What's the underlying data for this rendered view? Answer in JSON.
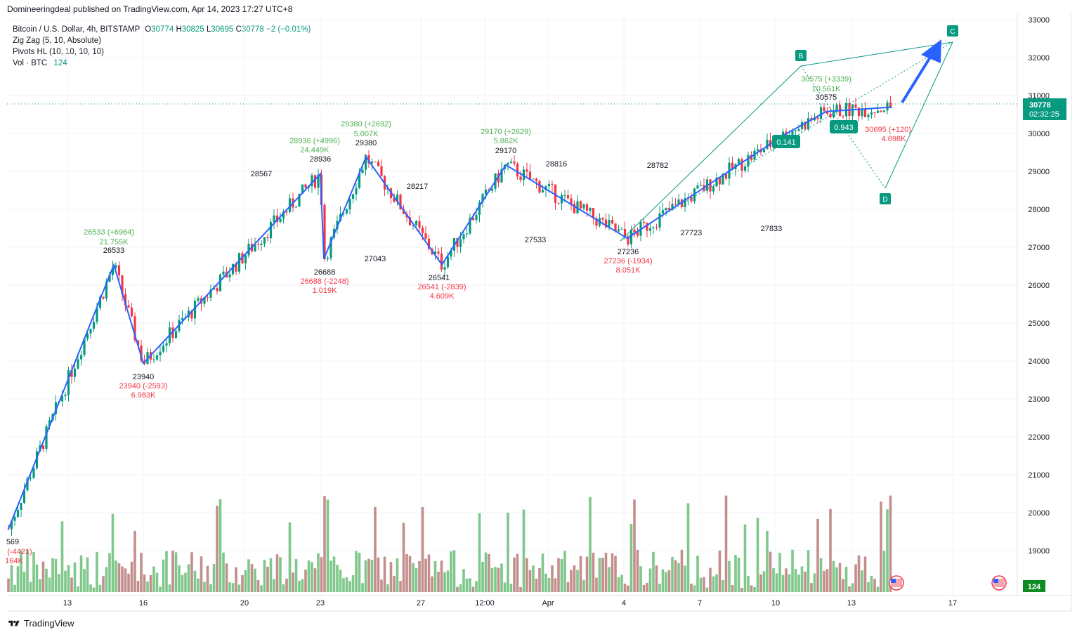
{
  "header": {
    "published": "Domineeringdeal published on TradingView.com, Apr 14, 2023 17:27 UTC+8"
  },
  "legend": {
    "symbol": "Bitcoin / U.S. Dollar, 4h, BITSTAMP",
    "o_label": "O",
    "o": "30774",
    "h_label": "H",
    "h": "30825",
    "l_label": "L",
    "l": "30695",
    "c_label": "C",
    "c": "30778",
    "change": "−2 (−0.01%)",
    "indicator_zigzag": "Zig Zag (5, 10, Absolute)",
    "indicator_pivots": "Pivots HL (10, 10, 10, 10)",
    "vol_label": "Vol · BTC",
    "vol_value": "124"
  },
  "price_axis": {
    "ticks": [
      "33000",
      "32000",
      "31000",
      "30000",
      "29000",
      "28000",
      "27000",
      "26000",
      "25000",
      "24000",
      "23000",
      "22000",
      "21000",
      "20000",
      "19000"
    ],
    "last_price": "30778",
    "countdown": "02:32:25",
    "volume_badge": "124"
  },
  "time_axis": {
    "ticks": [
      "13",
      "16",
      "20",
      "23",
      "27",
      "12:00",
      "Apr",
      "4",
      "7",
      "10",
      "13",
      "17"
    ]
  },
  "pivot_labels": [
    {
      "text": "26533",
      "color": "#131722"
    },
    {
      "text": "26533 (+6964)",
      "color": "#4caf50"
    },
    {
      "text": "21.755K",
      "color": "#4caf50"
    },
    {
      "text": "23940",
      "color": "#131722"
    },
    {
      "text": "23940 (-2593)",
      "color": "#f23645"
    },
    {
      "text": "6.983K",
      "color": "#f23645"
    },
    {
      "text": "28567",
      "color": "#131722"
    },
    {
      "text": "28936",
      "color": "#131722"
    },
    {
      "text": "28936 (+4996)",
      "color": "#4caf50"
    },
    {
      "text": "24.449K",
      "color": "#4caf50"
    },
    {
      "text": "26688",
      "color": "#131722"
    },
    {
      "text": "26688 (-2248)",
      "color": "#f23645"
    },
    {
      "text": "1.019K",
      "color": "#f23645"
    },
    {
      "text": "29380",
      "color": "#131722"
    },
    {
      "text": "29380 (+2692)",
      "color": "#4caf50"
    },
    {
      "text": "5.007K",
      "color": "#4caf50"
    },
    {
      "text": "27043",
      "color": "#131722"
    },
    {
      "text": "28217",
      "color": "#131722"
    },
    {
      "text": "26541",
      "color": "#131722"
    },
    {
      "text": "26541 (-2839)",
      "color": "#f23645"
    },
    {
      "text": "4.609K",
      "color": "#f23645"
    },
    {
      "text": "29170",
      "color": "#131722"
    },
    {
      "text": "29170 (+2629)",
      "color": "#4caf50"
    },
    {
      "text": "5.862K",
      "color": "#4caf50"
    },
    {
      "text": "28816",
      "color": "#131722"
    },
    {
      "text": "27533",
      "color": "#131722"
    },
    {
      "text": "28782",
      "color": "#131722"
    },
    {
      "text": "27236",
      "color": "#131722"
    },
    {
      "text": "27236 (-1934)",
      "color": "#f23645"
    },
    {
      "text": "8.051K",
      "color": "#f23645"
    },
    {
      "text": "27723",
      "color": "#131722"
    },
    {
      "text": "27833",
      "color": "#131722"
    },
    {
      "text": "30575",
      "color": "#131722"
    },
    {
      "text": "30575 (+3339)",
      "color": "#4caf50"
    },
    {
      "text": "10.561K",
      "color": "#4caf50"
    },
    {
      "text": "30695 (+120)",
      "color": "#f23645"
    },
    {
      "text": "4.698K",
      "color": "#f23645"
    },
    {
      "text": "569",
      "color": "#131722"
    },
    {
      "text": "(-4421)",
      "color": "#f23645"
    },
    {
      "text": "164K",
      "color": "#f23645"
    }
  ],
  "pattern": {
    "points": [
      "B",
      "C",
      "D"
    ],
    "ratios": [
      "0.141",
      "0.943"
    ],
    "color": "#089981",
    "arrow_color": "#2962ff"
  },
  "chart_data": {
    "type": "candlestick",
    "symbol": "BTCUSD",
    "timeframe": "4h",
    "ylim": [
      19000,
      33000
    ],
    "zigzag": [
      {
        "x": "Mar 10",
        "y": 19569
      },
      {
        "x": "Mar 14",
        "y": 26533
      },
      {
        "x": "Mar 16",
        "y": 23940
      },
      {
        "x": "Mar 22",
        "y": 28936
      },
      {
        "x": "Mar 23",
        "y": 26688
      },
      {
        "x": "Mar 24",
        "y": 29380
      },
      {
        "x": "Mar 28",
        "y": 26541
      },
      {
        "x": "Mar 30",
        "y": 29170
      },
      {
        "x": "Apr 4",
        "y": 27236
      },
      {
        "x": "Apr 10",
        "y": 29950
      },
      {
        "x": "Apr 11",
        "y": 30575
      },
      {
        "x": "Apr 14",
        "y": 30695
      }
    ],
    "colors": {
      "up": "#089981",
      "down": "#f23645",
      "zigzag": "#2962ff",
      "vol_up": "#7fc78a",
      "vol_down": "#c28f8c"
    }
  }
}
